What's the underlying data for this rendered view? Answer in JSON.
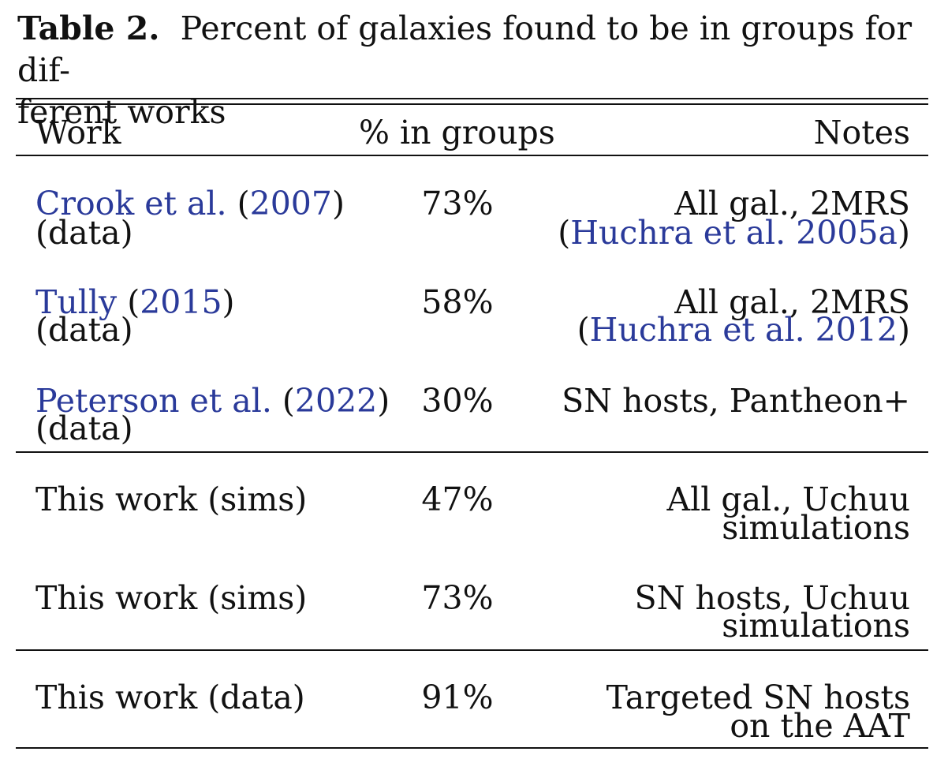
{
  "caption": {
    "label": "Table 2.",
    "text_line1": "Percent of galaxies found to be in groups for dif-",
    "text_line2": "ferent works"
  },
  "headers": {
    "work": "Work",
    "pct": "% in groups",
    "notes": "Notes"
  },
  "rows": [
    {
      "work_link": "Crook et al.",
      "work_year_open": "(",
      "work_year": "2007",
      "work_year_close": ")",
      "work_line2": "(data)",
      "pct": "73%",
      "notes_line1": "All gal., 2MRS",
      "notes_line2_open": "(",
      "notes_line2_link": "Huchra et al. 2005a",
      "notes_line2_close": ")"
    },
    {
      "work_link": "Tully",
      "work_year_open": "(",
      "work_year": "2015",
      "work_year_close": ")",
      "work_line2": "(data)",
      "pct": "58%",
      "notes_line1": "All gal., 2MRS",
      "notes_line2_open": "(",
      "notes_line2_link": "Huchra et al. 2012",
      "notes_line2_close": ")"
    },
    {
      "work_link": "Peterson et al.",
      "work_year_open": "(",
      "work_year": "2022",
      "work_year_close": ")",
      "work_line2": "(data)",
      "pct": "30%",
      "notes_line1": "SN hosts, Pantheon+"
    },
    {
      "work": "This work (sims)",
      "pct": "47%",
      "notes_line1": "All gal., Uchuu",
      "notes_line2": "simulations"
    },
    {
      "work": "This work (sims)",
      "pct": "73%",
      "notes_line1": "SN hosts, Uchuu",
      "notes_line2": "simulations"
    },
    {
      "work": "This work (data)",
      "pct": "91%",
      "notes_line1": "Targeted SN hosts",
      "notes_line2": "on the AAT"
    }
  ]
}
